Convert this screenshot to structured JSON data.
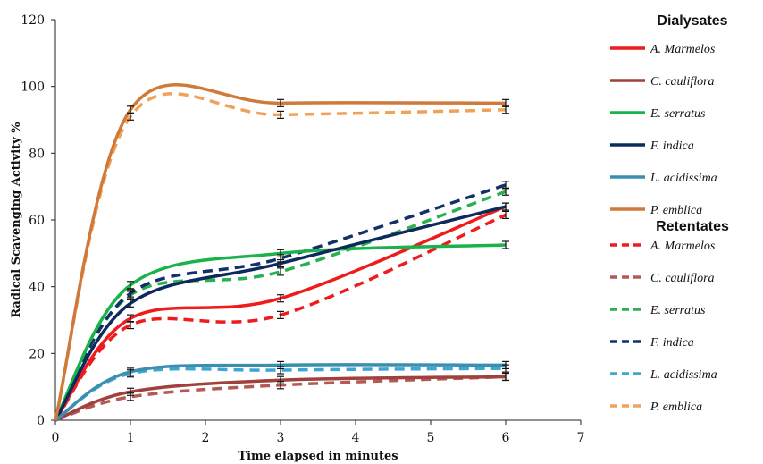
{
  "chart_data": {
    "type": "line",
    "xlabel": "Time elapsed in minutes",
    "ylabel": "Radical Scavenging Activity %",
    "xlim": [
      0,
      7
    ],
    "ylim": [
      0,
      120
    ],
    "xticks": [
      "0",
      "1",
      "2",
      "3",
      "4",
      "5",
      "6",
      "7"
    ],
    "yticks": [
      "0",
      "20",
      "40",
      "60",
      "80",
      "100",
      "120"
    ],
    "grid": false,
    "legend_groups": [
      {
        "title": "Dialysates",
        "style": "solid"
      },
      {
        "title": "Retentates",
        "style": "dashed"
      }
    ],
    "x": [
      0,
      1,
      3,
      6
    ],
    "series": [
      {
        "name": "A. Marmelos",
        "group": "Dialysates",
        "color": "#ee1c1c",
        "values": [
          0,
          30.5,
          36.5,
          64
        ]
      },
      {
        "name": "C. cauliflora",
        "group": "Dialysates",
        "color": "#a0413c",
        "values": [
          0,
          8.5,
          12,
          13
        ]
      },
      {
        "name": "E. serratus",
        "group": "Dialysates",
        "color": "#19b34a",
        "values": [
          0,
          40.5,
          50,
          52.5
        ]
      },
      {
        "name": "F. indica",
        "group": "Dialysates",
        "color": "#0d2a5c",
        "values": [
          0,
          35,
          47,
          64
        ]
      },
      {
        "name": "L. acidissima",
        "group": "Dialysates",
        "color": "#3a8fb0",
        "values": [
          0,
          14.5,
          16.5,
          16.5
        ]
      },
      {
        "name": "P. emblica",
        "group": "Dialysates",
        "color": "#cf7a3a",
        "values": [
          0,
          93,
          95,
          95
        ]
      },
      {
        "name": "A. Marmelos",
        "group": "Retentates",
        "color": "#ee1c1c",
        "values": [
          0,
          28.5,
          31.5,
          61.5
        ]
      },
      {
        "name": "C. cauliflora",
        "group": "Retentates",
        "color": "#b45a56",
        "values": [
          0,
          7,
          10.5,
          13
        ]
      },
      {
        "name": "E. serratus",
        "group": "Retentates",
        "color": "#29b14f",
        "values": [
          0,
          37.5,
          44.5,
          68.5
        ]
      },
      {
        "name": "F. indica",
        "group": "Retentates",
        "color": "#13306b",
        "values": [
          0,
          38,
          48.5,
          70.5
        ]
      },
      {
        "name": "L. acidissima",
        "group": "Retentates",
        "color": "#3ea6cf",
        "values": [
          0,
          14,
          15,
          15.5
        ]
      },
      {
        "name": "P. emblica",
        "group": "Retentates",
        "color": "#f0a25a",
        "values": [
          0,
          91,
          91.5,
          93
        ]
      }
    ]
  }
}
